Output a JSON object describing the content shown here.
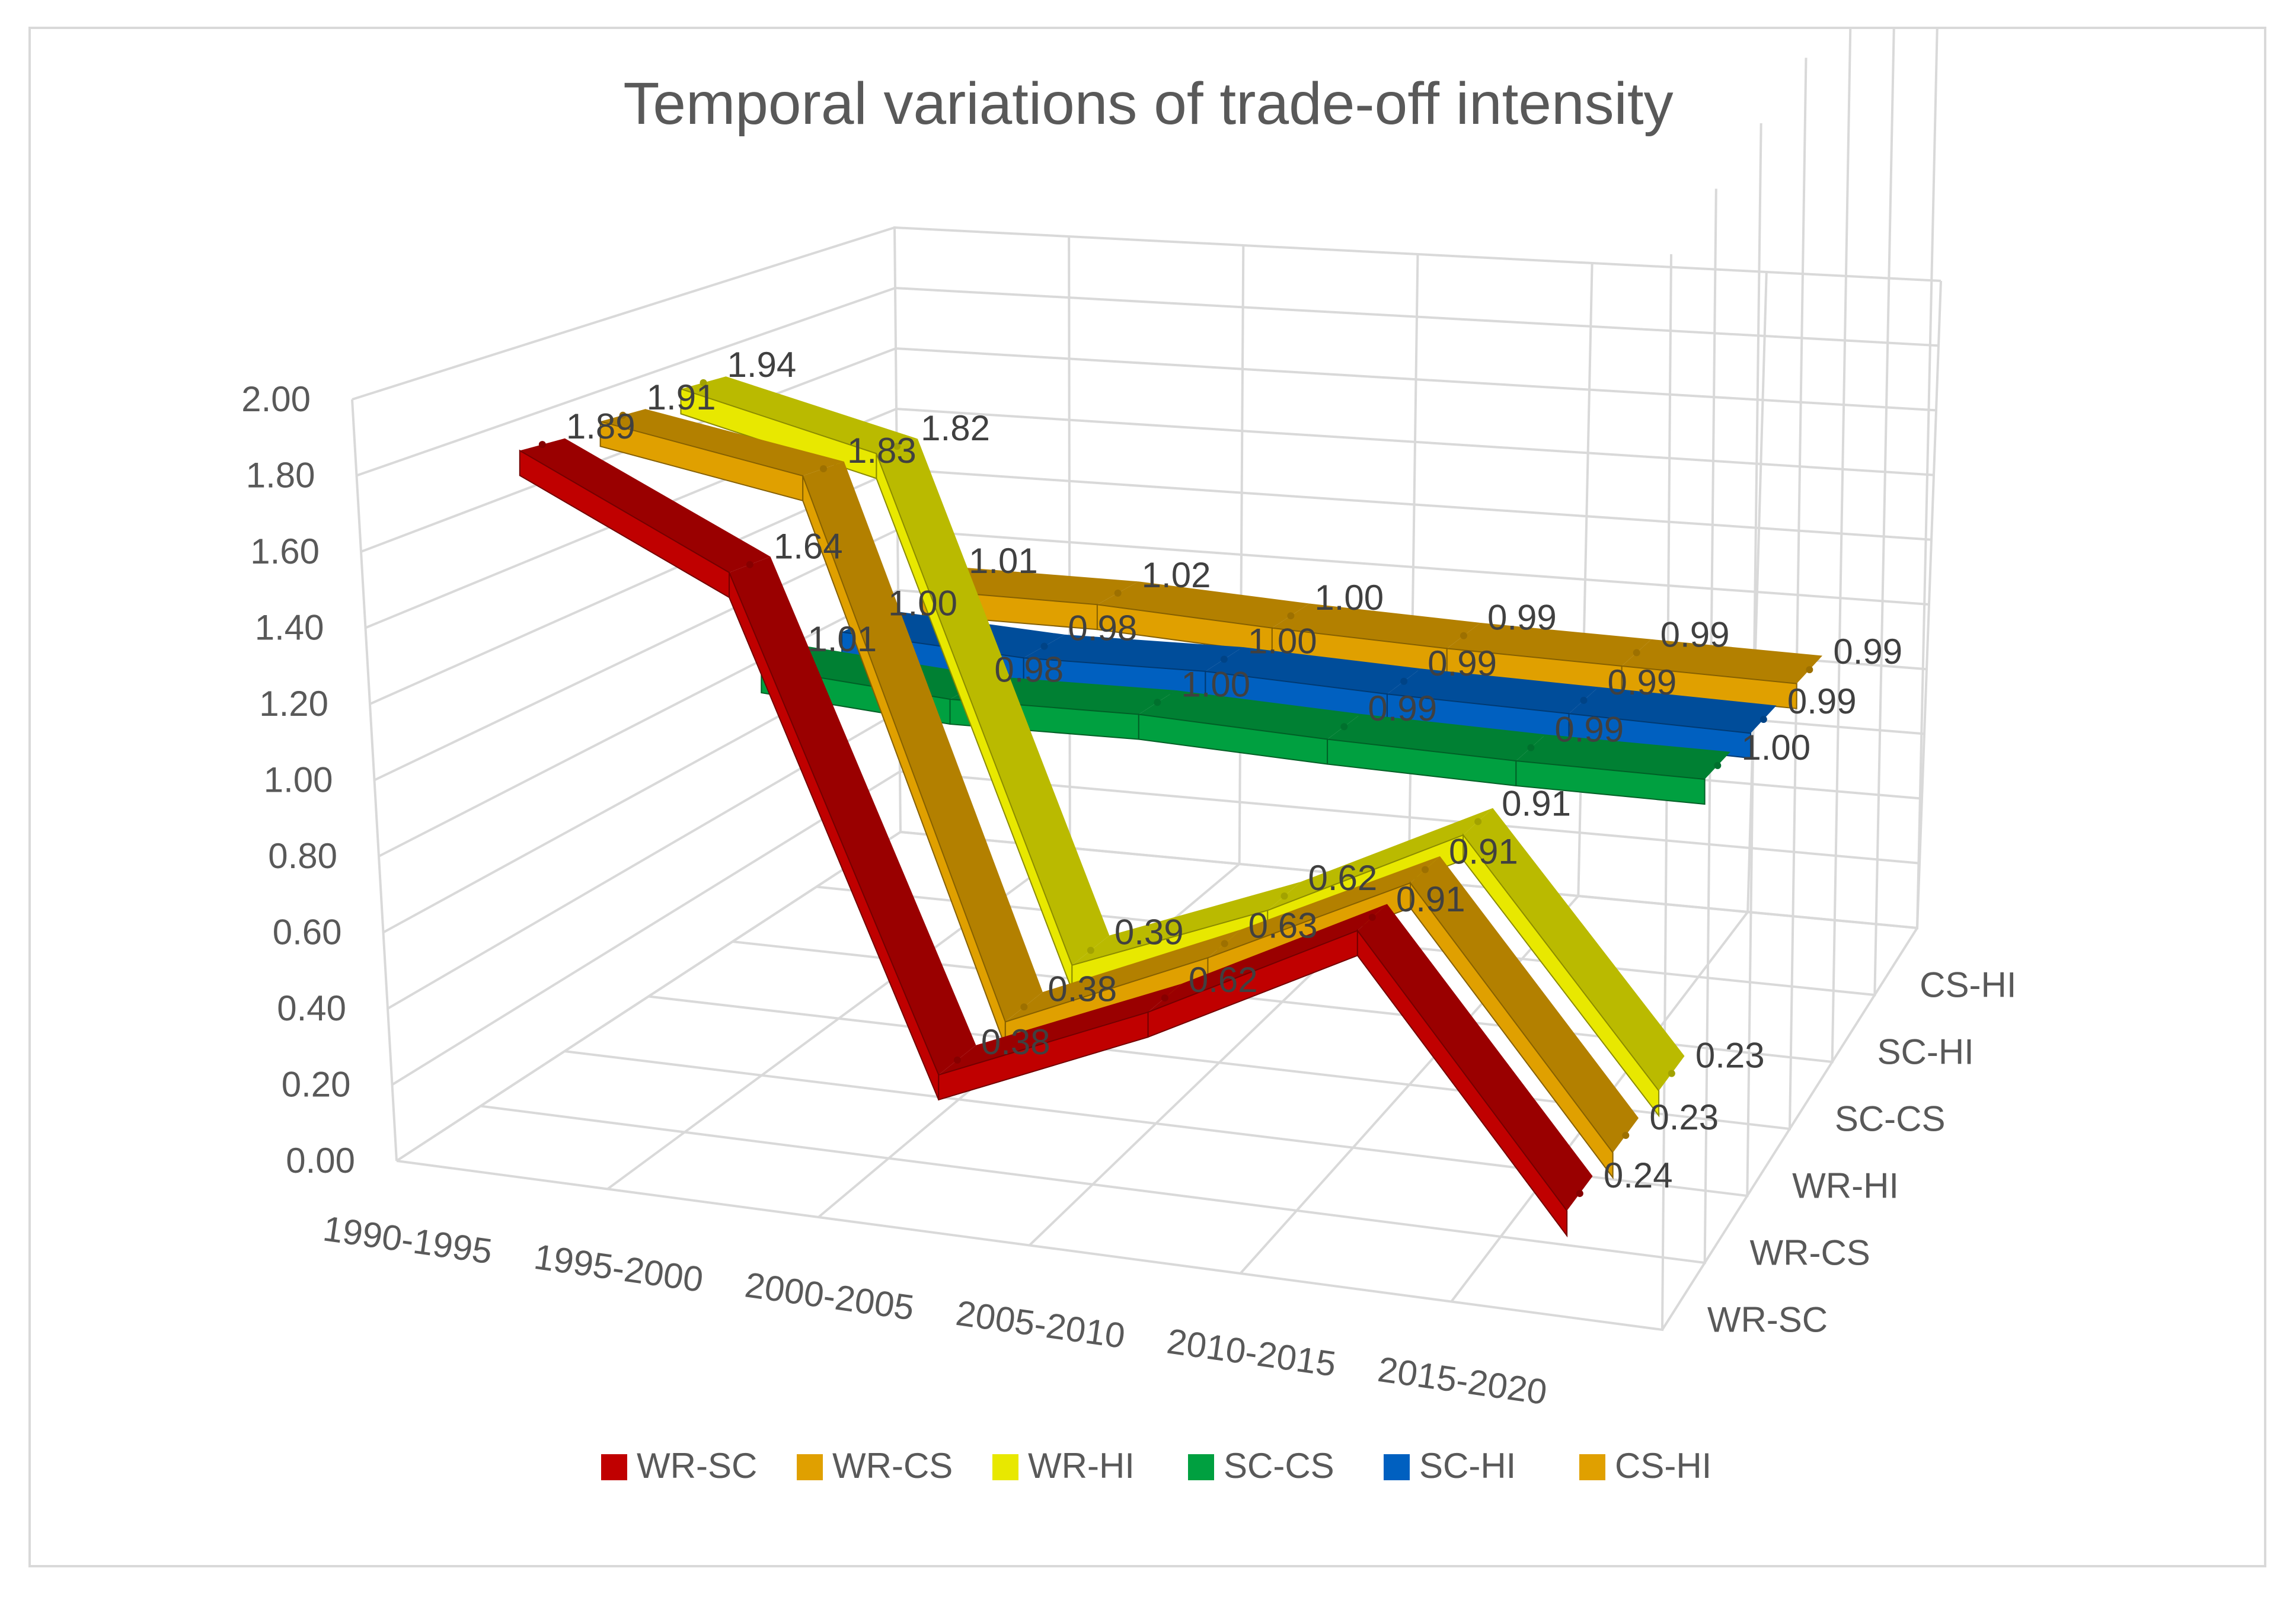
{
  "chart_data": {
    "type": "line",
    "subtype": "3d-line",
    "title": "Temporal variations of trade-off intensity",
    "categories": [
      "1990-1995",
      "1995-2000",
      "2000-2005",
      "2005-2010",
      "2010-2015",
      "2015-2020"
    ],
    "y_ticks": [
      "0.00",
      "0.20",
      "0.40",
      "0.60",
      "0.80",
      "1.00",
      "1.20",
      "1.40",
      "1.60",
      "1.80",
      "2.00"
    ],
    "ylim": [
      0,
      2
    ],
    "depth_labels": [
      "WR-SC",
      "WR-CS",
      "WR-HI",
      "SC-CS",
      "SC-HI",
      "CS-HI"
    ],
    "legend_position": "bottom",
    "series": [
      {
        "name": "WR-SC",
        "color": "#c00000",
        "values": [
          1.89,
          1.64,
          0.38,
          0.62,
          0.91,
          0.24
        ],
        "labels": [
          "1.89",
          "1.64",
          "0.38",
          "0.62",
          "0.91",
          "0.24"
        ]
      },
      {
        "name": "WR-CS",
        "color": "#e0a000",
        "values": [
          1.91,
          1.83,
          0.38,
          0.63,
          0.91,
          0.23
        ],
        "labels": [
          "1.91",
          "1.83",
          "0.38",
          "0.63",
          "0.91",
          "0.23"
        ]
      },
      {
        "name": "WR-HI",
        "color": "#e8e800",
        "values": [
          1.94,
          1.82,
          0.39,
          0.62,
          0.91,
          0.23
        ],
        "labels": [
          "1.94",
          "1.82",
          "0.39",
          "0.62",
          "0.91",
          "0.23"
        ]
      },
      {
        "name": "SC-CS",
        "color": "#00a040",
        "values": [
          1.01,
          0.98,
          1.0,
          0.99,
          0.99,
          1.0
        ],
        "labels": [
          "1.01",
          "0.98",
          "1.00",
          "0.99",
          "0.99",
          "1.00"
        ]
      },
      {
        "name": "SC-HI",
        "color": "#0060c0",
        "values": [
          1.0,
          0.98,
          1.0,
          0.99,
          0.99,
          0.99
        ],
        "labels": [
          "1.00",
          "0.98",
          "1.00",
          "0.99",
          "0.99",
          "0.99"
        ]
      },
      {
        "name": "CS-HI",
        "color": "#e0a000",
        "values": [
          1.01,
          1.02,
          1.0,
          0.99,
          0.99,
          0.99
        ],
        "labels": [
          "1.01",
          "1.02",
          "1.00",
          "0.99",
          "0.99",
          "0.99"
        ]
      }
    ]
  }
}
